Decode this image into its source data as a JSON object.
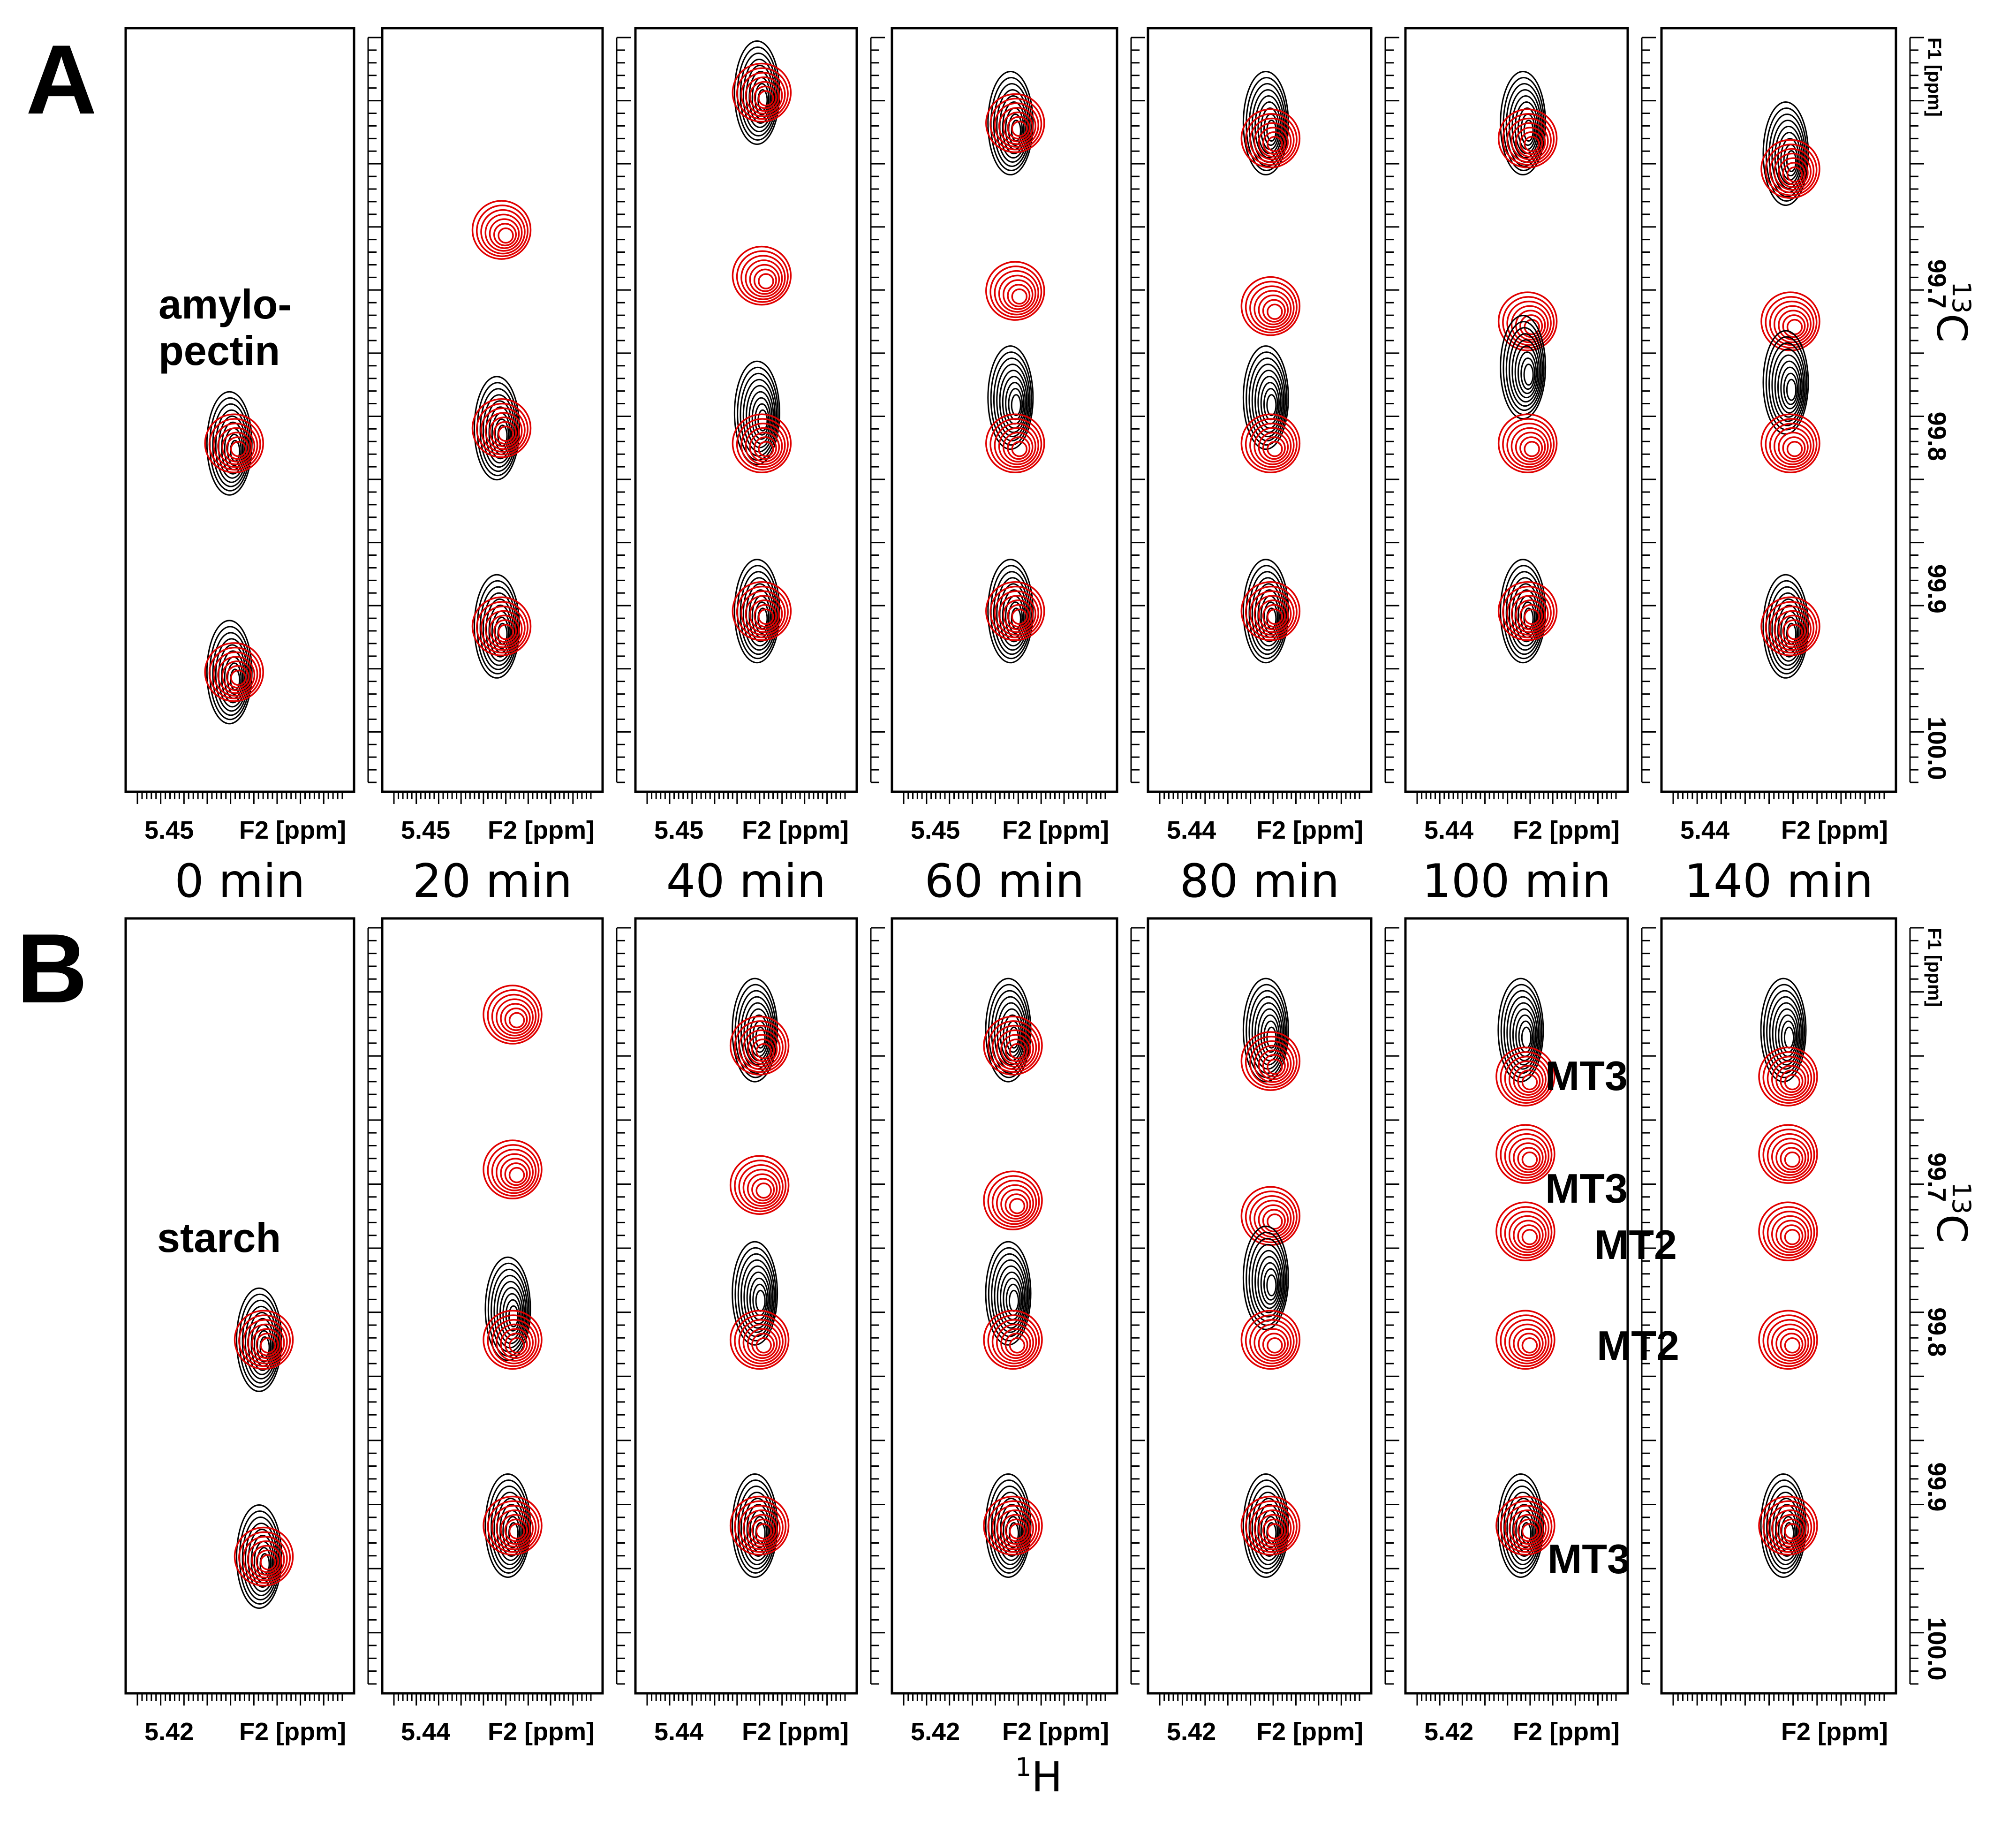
{
  "figure": {
    "row_a_letter": "A",
    "row_b_letter": "B",
    "x_axis_title_nucleus": "1",
    "x_axis_title_symbol": "H",
    "y_axis_title_nucleus": "13",
    "y_axis_title_symbol": "C",
    "f2_label": "F2 [ppm]",
    "f1_label": "F1 [ppm]",
    "row_a_sample_line1": "amylo-",
    "row_a_sample_line2": "pectin",
    "row_b_sample": "starch"
  },
  "time_labels": [
    "0 min",
    "20 min",
    "40 min",
    "60 min",
    "80 min",
    "100 min",
    "140 min"
  ],
  "x_ticks_row_a": [
    "5.45",
    "5.45",
    "5.45",
    "5.45",
    "5.44",
    "5.44",
    "5.44"
  ],
  "x_ticks_row_b": [
    "5.42",
    "5.44",
    "5.44",
    "5.42",
    "5.42",
    "5.42",
    ""
  ],
  "annotations": [
    "MT3",
    "MT3",
    "MT2",
    "MT2",
    "MT3"
  ],
  "colors": {
    "black_spectrum": "#000000",
    "red_spectrum": "#e00000"
  },
  "chart_data": {
    "type": "contour",
    "description_x": "1H chemical shift F2 [ppm]",
    "description_y": "13C chemical shift F1 [ppm]",
    "y_ticks": [
      99.7,
      99.8,
      99.9,
      100.0
    ],
    "y_range": [
      99.57,
      100.07
    ],
    "x_axis_units": "ppm",
    "series_colors": [
      "black",
      "red"
    ],
    "row_a": {
      "sample": "amylopectin",
      "panels": [
        {
          "time": "0 min",
          "peaks": [
            {
              "c13": 99.83,
              "color": "black"
            },
            {
              "c13": 99.83,
              "color": "red"
            },
            {
              "c13": 99.98,
              "color": "black"
            },
            {
              "c13": 99.98,
              "color": "red"
            }
          ]
        },
        {
          "time": "20 min",
          "peaks": [
            {
              "c13": 99.69,
              "color": "red"
            },
            {
              "c13": 99.82,
              "color": "black"
            },
            {
              "c13": 99.82,
              "color": "red"
            },
            {
              "c13": 99.95,
              "color": "black"
            },
            {
              "c13": 99.95,
              "color": "red"
            }
          ]
        },
        {
          "time": "40 min",
          "peaks": [
            {
              "c13": 99.6,
              "color": "black"
            },
            {
              "c13": 99.6,
              "color": "red"
            },
            {
              "c13": 99.72,
              "color": "red"
            },
            {
              "c13": 99.81,
              "color": "black"
            },
            {
              "c13": 99.83,
              "color": "red"
            },
            {
              "c13": 99.94,
              "color": "black"
            },
            {
              "c13": 99.94,
              "color": "red"
            }
          ]
        },
        {
          "time": "60 min",
          "peaks": [
            {
              "c13": 99.62,
              "color": "black"
            },
            {
              "c13": 99.62,
              "color": "red"
            },
            {
              "c13": 99.73,
              "color": "red"
            },
            {
              "c13": 99.8,
              "color": "black"
            },
            {
              "c13": 99.83,
              "color": "red"
            },
            {
              "c13": 99.94,
              "color": "black"
            },
            {
              "c13": 99.94,
              "color": "red"
            }
          ]
        },
        {
          "time": "80 min",
          "peaks": [
            {
              "c13": 99.62,
              "color": "black"
            },
            {
              "c13": 99.63,
              "color": "red"
            },
            {
              "c13": 99.74,
              "color": "red"
            },
            {
              "c13": 99.8,
              "color": "black"
            },
            {
              "c13": 99.83,
              "color": "red"
            },
            {
              "c13": 99.94,
              "color": "black"
            },
            {
              "c13": 99.94,
              "color": "red"
            }
          ]
        },
        {
          "time": "100 min",
          "peaks": [
            {
              "c13": 99.62,
              "color": "black"
            },
            {
              "c13": 99.63,
              "color": "red"
            },
            {
              "c13": 99.75,
              "color": "red"
            },
            {
              "c13": 99.78,
              "color": "black"
            },
            {
              "c13": 99.83,
              "color": "red"
            },
            {
              "c13": 99.94,
              "color": "black"
            },
            {
              "c13": 99.94,
              "color": "red"
            }
          ]
        },
        {
          "time": "140 min",
          "peaks": [
            {
              "c13": 99.64,
              "color": "black"
            },
            {
              "c13": 99.65,
              "color": "red"
            },
            {
              "c13": 99.75,
              "color": "red"
            },
            {
              "c13": 99.79,
              "color": "black"
            },
            {
              "c13": 99.83,
              "color": "red"
            },
            {
              "c13": 99.95,
              "color": "black"
            },
            {
              "c13": 99.95,
              "color": "red"
            }
          ]
        }
      ]
    },
    "row_b": {
      "sample": "starch",
      "panels": [
        {
          "time": "0 min",
          "peaks": [
            {
              "c13": 99.83,
              "color": "black"
            },
            {
              "c13": 99.83,
              "color": "red"
            },
            {
              "c13": 99.97,
              "color": "black"
            },
            {
              "c13": 99.97,
              "color": "red"
            }
          ]
        },
        {
          "time": "20 min",
          "peaks": [
            {
              "c13": 99.62,
              "color": "red"
            },
            {
              "c13": 99.72,
              "color": "red"
            },
            {
              "c13": 99.81,
              "color": "black"
            },
            {
              "c13": 99.83,
              "color": "red"
            },
            {
              "c13": 99.95,
              "color": "black"
            },
            {
              "c13": 99.95,
              "color": "red"
            }
          ]
        },
        {
          "time": "40 min",
          "peaks": [
            {
              "c13": 99.63,
              "color": "black"
            },
            {
              "c13": 99.64,
              "color": "red"
            },
            {
              "c13": 99.73,
              "color": "red"
            },
            {
              "c13": 99.8,
              "color": "black"
            },
            {
              "c13": 99.83,
              "color": "red"
            },
            {
              "c13": 99.95,
              "color": "black"
            },
            {
              "c13": 99.95,
              "color": "red"
            }
          ]
        },
        {
          "time": "60 min",
          "peaks": [
            {
              "c13": 99.63,
              "color": "black"
            },
            {
              "c13": 99.64,
              "color": "red"
            },
            {
              "c13": 99.74,
              "color": "red"
            },
            {
              "c13": 99.8,
              "color": "black"
            },
            {
              "c13": 99.83,
              "color": "red"
            },
            {
              "c13": 99.95,
              "color": "black"
            },
            {
              "c13": 99.95,
              "color": "red"
            }
          ]
        },
        {
          "time": "80 min",
          "peaks": [
            {
              "c13": 99.63,
              "color": "black"
            },
            {
              "c13": 99.65,
              "color": "red"
            },
            {
              "c13": 99.75,
              "color": "red"
            },
            {
              "c13": 99.79,
              "color": "black"
            },
            {
              "c13": 99.83,
              "color": "red"
            },
            {
              "c13": 99.95,
              "color": "black"
            },
            {
              "c13": 99.95,
              "color": "red"
            }
          ]
        },
        {
          "time": "100 min",
          "peaks": [
            {
              "c13": 99.63,
              "color": "black"
            },
            {
              "c13": 99.66,
              "color": "red",
              "label": "MT3"
            },
            {
              "c13": 99.71,
              "color": "red",
              "label": "MT3"
            },
            {
              "c13": 99.76,
              "color": "red",
              "label": "MT2"
            },
            {
              "c13": 99.83,
              "color": "red",
              "label": "MT2"
            },
            {
              "c13": 99.95,
              "color": "black"
            },
            {
              "c13": 99.95,
              "color": "red",
              "label": "MT3"
            }
          ]
        },
        {
          "time": "140 min",
          "peaks": [
            {
              "c13": 99.63,
              "color": "black"
            },
            {
              "c13": 99.66,
              "color": "red"
            },
            {
              "c13": 99.71,
              "color": "red"
            },
            {
              "c13": 99.76,
              "color": "red"
            },
            {
              "c13": 99.83,
              "color": "red"
            },
            {
              "c13": 99.95,
              "color": "black"
            },
            {
              "c13": 99.95,
              "color": "red"
            }
          ]
        }
      ]
    }
  }
}
